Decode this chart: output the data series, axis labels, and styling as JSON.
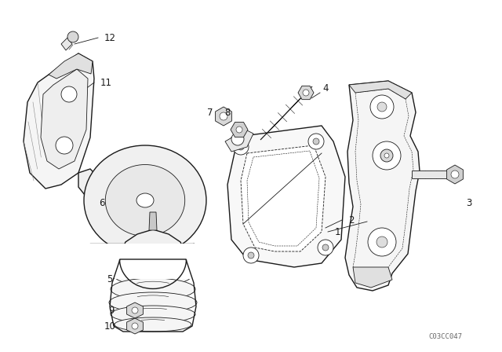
{
  "bg_color": "#ffffff",
  "line_color": "#1a1a1a",
  "fig_width": 6.4,
  "fig_height": 4.48,
  "dpi": 100,
  "watermark": "C03CC047",
  "label_fs": 8.5
}
